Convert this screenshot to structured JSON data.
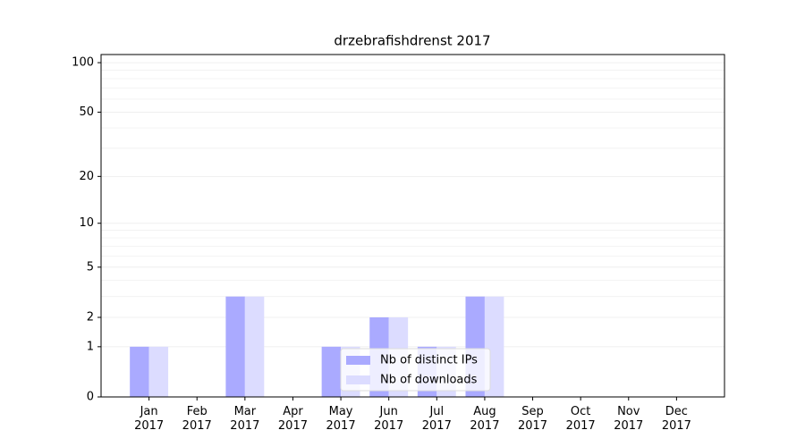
{
  "chart_data": {
    "type": "bar",
    "title": "drzebrafishdrenst 2017",
    "categories": [
      "Jan\n2017",
      "Feb\n2017",
      "Mar\n2017",
      "Apr\n2017",
      "May\n2017",
      "Jun\n2017",
      "Jul\n2017",
      "Aug\n2017",
      "Sep\n2017",
      "Oct\n2017",
      "Nov\n2017",
      "Dec\n2017"
    ],
    "series": [
      {
        "name": "Nb of distinct IPs",
        "color": "#aaaaff",
        "values": [
          1,
          0,
          3,
          0,
          1,
          2,
          1,
          3,
          0,
          0,
          0,
          0
        ]
      },
      {
        "name": "Nb of downloads",
        "color": "#dcdcff",
        "values": [
          1,
          0,
          3,
          0,
          1,
          2,
          1,
          3,
          0,
          0,
          0,
          0
        ]
      }
    ],
    "yscale": "log1p",
    "ylim": [
      0,
      112
    ],
    "yticks": [
      0,
      1,
      2,
      5,
      10,
      20,
      50,
      100
    ],
    "minor_yticks": [
      3,
      4,
      6,
      7,
      8,
      9,
      30,
      40,
      60,
      70,
      80,
      90
    ],
    "grid": true,
    "legend": "lower center"
  }
}
